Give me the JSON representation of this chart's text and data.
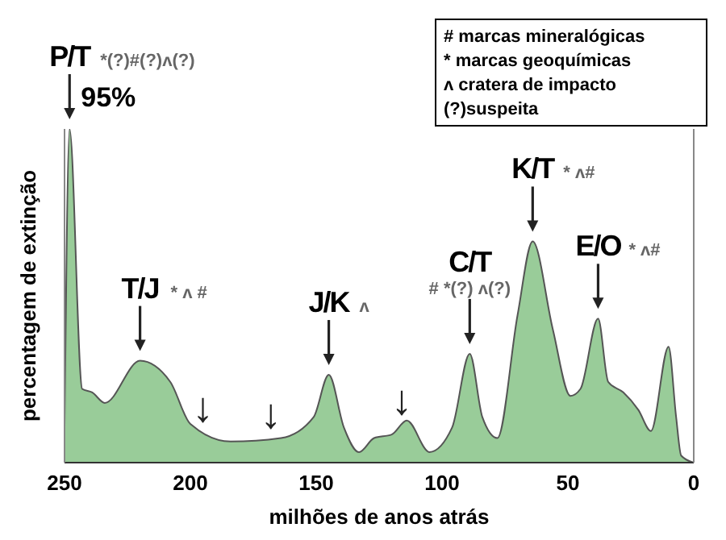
{
  "chart_data": {
    "type": "area",
    "xlabel": "milhões de anos atrás",
    "ylabel": "percentagem de extinção",
    "x": [
      250,
      248,
      243,
      239,
      234,
      220,
      208,
      200,
      184,
      164,
      151,
      145,
      139,
      133,
      127,
      120,
      114,
      105,
      96,
      89,
      84,
      78,
      70,
      64,
      56,
      49,
      45,
      38,
      34,
      28,
      22,
      17,
      10,
      7,
      5,
      0
    ],
    "values": [
      10,
      95,
      21,
      20,
      17,
      29,
      23,
      11,
      6,
      7,
      13,
      25,
      10,
      3,
      7,
      8,
      12,
      3,
      10,
      31,
      13,
      7,
      42,
      63,
      38,
      19,
      21,
      41,
      23,
      20,
      15,
      9,
      33,
      13,
      2,
      0
    ],
    "value_labels": [
      null,
      "95%",
      null,
      null,
      null,
      null,
      null,
      null,
      null,
      null,
      null,
      null,
      null,
      null,
      null,
      null,
      null,
      null,
      null,
      null,
      null,
      null,
      null,
      null,
      null,
      null,
      null,
      null,
      null,
      null,
      null,
      null,
      null,
      null,
      null,
      null
    ],
    "color": "#99cc99",
    "xlim": [
      250,
      0
    ],
    "xticks": [
      250,
      200,
      150,
      100,
      50,
      0
    ],
    "ylim": [
      0,
      95
    ],
    "tick_labels": "x",
    "annotations": [
      {
        "text": "P/T",
        "x": 248,
        "y": 95
      },
      "*(?)#(?)ʌ(?)",
      {
        "text": "T/J",
        "x": 220,
        "y": 29
      },
      "* ʌ #",
      {
        "text": "↓",
        "x": 195,
        "y": 9
      },
      {
        "text": "↓",
        "x": 168,
        "y": 7
      },
      {
        "text": "J/K",
        "x": 145,
        "y": 25
      },
      "ʌ",
      {
        "text": "↓",
        "x": 116,
        "y": 11
      },
      {
        "text": "C/T",
        "x": 89,
        "y": 31
      },
      "# *(?) ʌ(?)",
      {
        "text": "K/T",
        "x": 64,
        "y": 63
      },
      "* ʌ#",
      {
        "text": "E/O",
        "x": 38,
        "y": 41
      },
      "* ʌ#",
      "#  marcas mineralógicas",
      "*  marcas geoquímicas",
      "ʌ  cratera de impacto",
      "(?)suspeita"
    ]
  }
}
